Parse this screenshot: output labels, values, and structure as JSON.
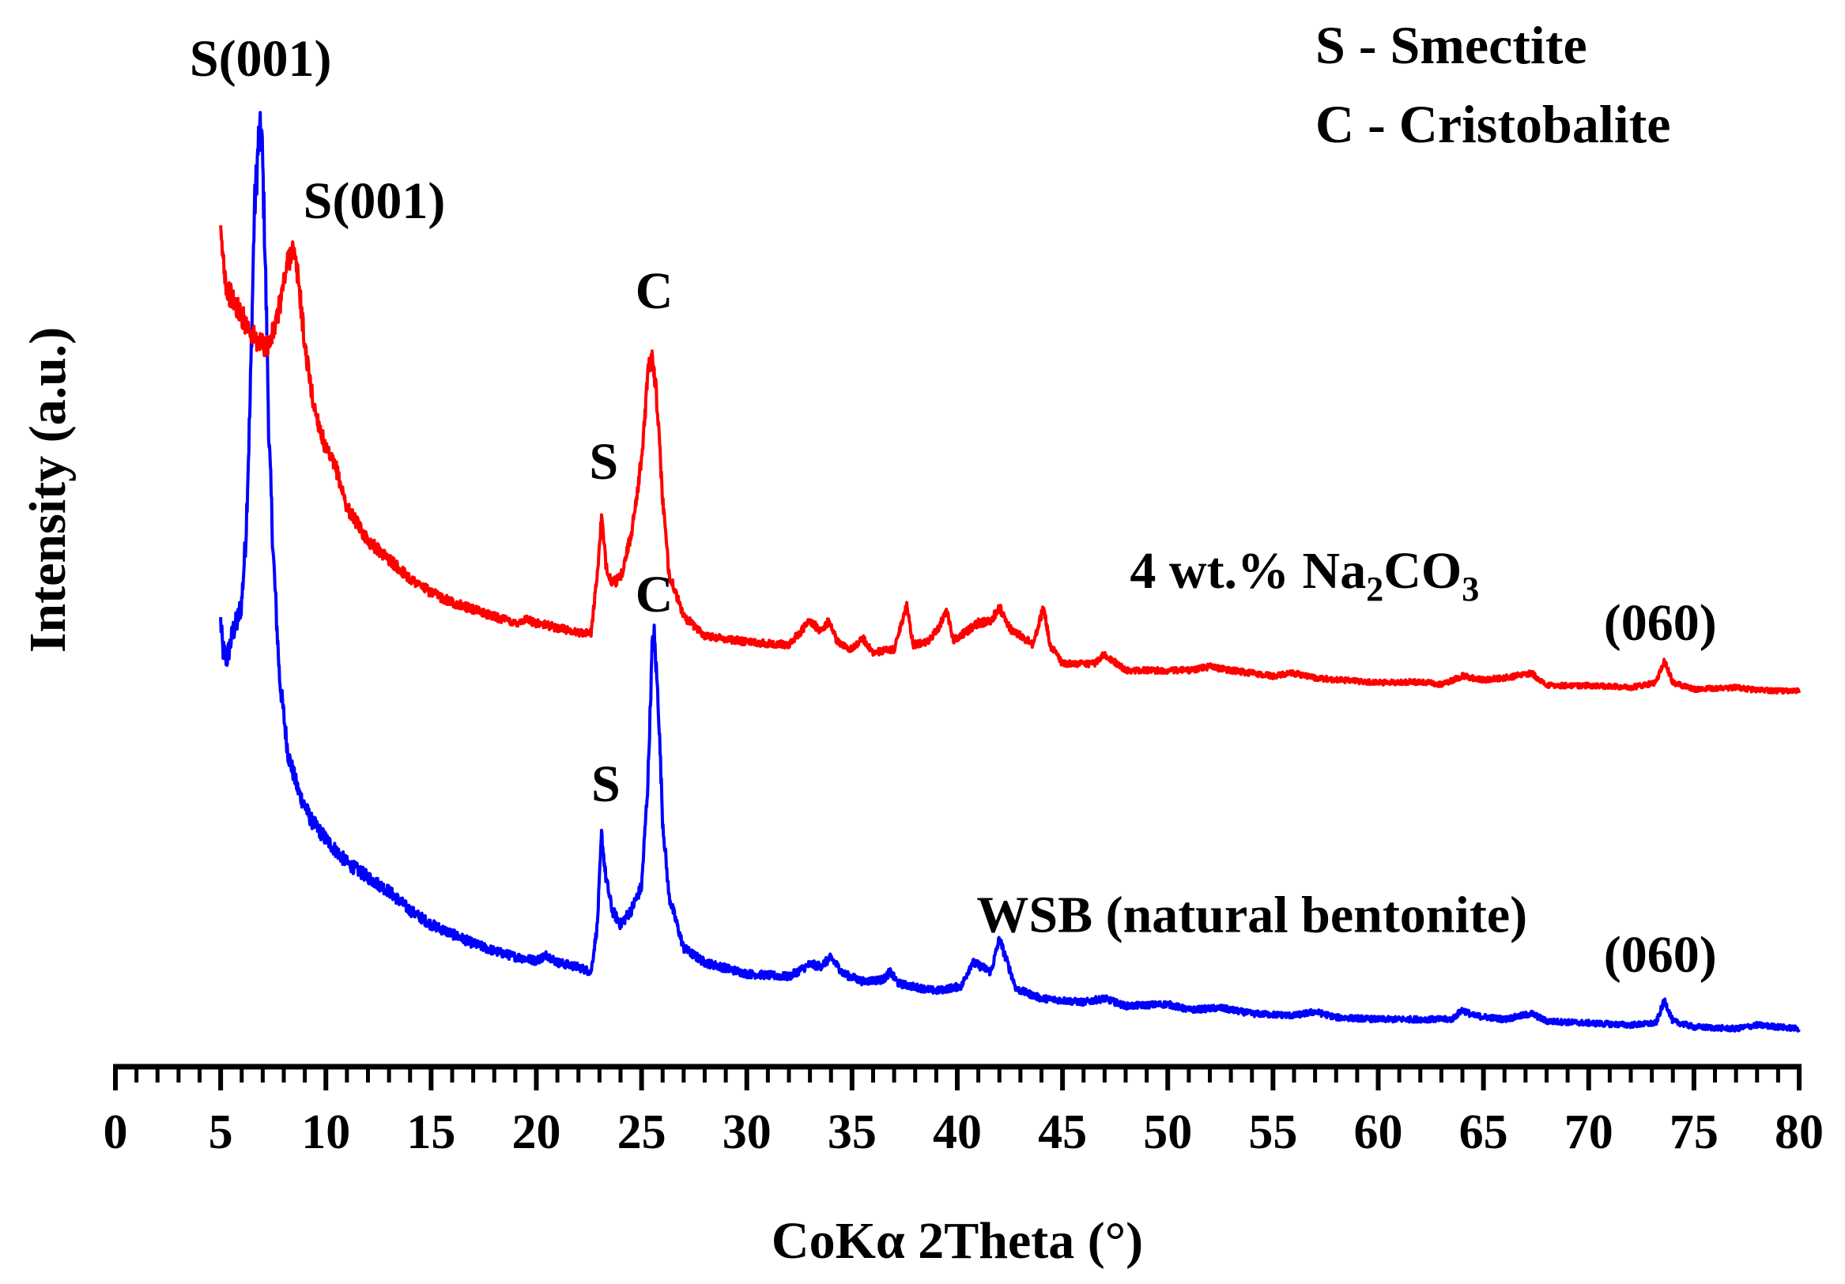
{
  "chart_data": {
    "type": "line",
    "xlabel": "CoKα 2Theta (°)",
    "ylabel": "Intensity (a.u.)",
    "xlim": [
      0,
      80
    ],
    "ylim": [
      0,
      1000
    ],
    "x_ticks": [
      0,
      5,
      10,
      15,
      20,
      25,
      30,
      35,
      40,
      45,
      50,
      55,
      60,
      65,
      70,
      75,
      80
    ],
    "x_tick_labels": [
      "0",
      "5",
      "10",
      "15",
      "20",
      "25",
      "30",
      "35",
      "40",
      "45",
      "50",
      "55",
      "60",
      "65",
      "70",
      "75",
      "80"
    ],
    "minor_tick_step": 1,
    "legend": {
      "placement": "top-right",
      "lines": [
        "S - Smectite",
        "C - Cristobalite"
      ]
    },
    "series": [
      {
        "name": "WSB (natural bentonite)",
        "color": "#0000ff",
        "baseline": 30,
        "points": [
          [
            5.0,
            470
          ],
          [
            5.1,
            440
          ],
          [
            5.3,
            430
          ],
          [
            5.6,
            460
          ],
          [
            5.8,
            470
          ],
          [
            6.0,
            490
          ],
          [
            6.2,
            560
          ],
          [
            6.4,
            700
          ],
          [
            6.6,
            900
          ],
          [
            6.8,
            975
          ],
          [
            6.95,
            985
          ],
          [
            7.1,
            870
          ],
          [
            7.3,
            660
          ],
          [
            7.5,
            540
          ],
          [
            7.8,
            410
          ],
          [
            8.2,
            330
          ],
          [
            8.7,
            290
          ],
          [
            9.3,
            260
          ],
          [
            10,
            240
          ],
          [
            11,
            215
          ],
          [
            12,
            200
          ],
          [
            13,
            185
          ],
          [
            14,
            165
          ],
          [
            15,
            150
          ],
          [
            16,
            140
          ],
          [
            17,
            130
          ],
          [
            18,
            122
          ],
          [
            19,
            116
          ],
          [
            20,
            112
          ],
          [
            20.5,
            118
          ],
          [
            21,
            110
          ],
          [
            22,
            105
          ],
          [
            22.6,
            100
          ],
          [
            22.9,
            150
          ],
          [
            23.1,
            245
          ],
          [
            23.3,
            200
          ],
          [
            23.6,
            165
          ],
          [
            24,
            150
          ],
          [
            24.5,
            165
          ],
          [
            25.0,
            190
          ],
          [
            25.3,
            300
          ],
          [
            25.5,
            440
          ],
          [
            25.6,
            455
          ],
          [
            25.8,
            380
          ],
          [
            26.0,
            260
          ],
          [
            26.3,
            180
          ],
          [
            27,
            125
          ],
          [
            28,
            110
          ],
          [
            30,
            98
          ],
          [
            32,
            95
          ],
          [
            33,
            108
          ],
          [
            33.5,
            106
          ],
          [
            34,
            115
          ],
          [
            34.6,
            98
          ],
          [
            35.5,
            90
          ],
          [
            36.5,
            92
          ],
          [
            36.8,
            100
          ],
          [
            37.2,
            88
          ],
          [
            38,
            84
          ],
          [
            39,
            80
          ],
          [
            40.2,
            85
          ],
          [
            40.7,
            110
          ],
          [
            41.2,
            105
          ],
          [
            41.6,
            100
          ],
          [
            42,
            135
          ],
          [
            42.3,
            115
          ],
          [
            42.8,
            82
          ],
          [
            44,
            72
          ],
          [
            46,
            68
          ],
          [
            47,
            72
          ],
          [
            48,
            64
          ],
          [
            50,
            66
          ],
          [
            51,
            60
          ],
          [
            52.5,
            62
          ],
          [
            54,
            56
          ],
          [
            56,
            54
          ],
          [
            57,
            58
          ],
          [
            58,
            52
          ],
          [
            60,
            50
          ],
          [
            62,
            50
          ],
          [
            63.5,
            50
          ],
          [
            64,
            60
          ],
          [
            64.5,
            54
          ],
          [
            66,
            50
          ],
          [
            67.3,
            56
          ],
          [
            68,
            48
          ],
          [
            70,
            46
          ],
          [
            72,
            44
          ],
          [
            73.2,
            46
          ],
          [
            73.6,
            70
          ],
          [
            74,
            48
          ],
          [
            75,
            42
          ],
          [
            77,
            40
          ],
          [
            78,
            44
          ],
          [
            80,
            40
          ]
        ]
      },
      {
        "name": "4 wt.% Na2CO3",
        "color": "#ff0000",
        "baseline": 395,
        "points": [
          [
            5.0,
            875
          ],
          [
            5.3,
            820
          ],
          [
            5.8,
            800
          ],
          [
            6.3,
            780
          ],
          [
            6.8,
            762
          ],
          [
            7.3,
            760
          ],
          [
            7.7,
            790
          ],
          [
            8.1,
            840
          ],
          [
            8.4,
            865
          ],
          [
            8.7,
            830
          ],
          [
            9.0,
            760
          ],
          [
            9.4,
            700
          ],
          [
            10,
            650
          ],
          [
            10.5,
            630
          ],
          [
            11,
            590
          ],
          [
            12,
            555
          ],
          [
            13,
            535
          ],
          [
            14,
            515
          ],
          [
            15,
            500
          ],
          [
            16,
            490
          ],
          [
            17,
            482
          ],
          [
            18,
            475
          ],
          [
            19,
            468
          ],
          [
            19.5,
            472
          ],
          [
            20,
            468
          ],
          [
            21,
            463
          ],
          [
            22,
            458
          ],
          [
            22.6,
            458
          ],
          [
            22.9,
            520
          ],
          [
            23.1,
            580
          ],
          [
            23.3,
            530
          ],
          [
            23.6,
            510
          ],
          [
            24,
            515
          ],
          [
            24.5,
            560
          ],
          [
            25.0,
            640
          ],
          [
            25.3,
            730
          ],
          [
            25.5,
            755
          ],
          [
            25.7,
            710
          ],
          [
            26.0,
            600
          ],
          [
            26.3,
            520
          ],
          [
            27,
            475
          ],
          [
            28,
            455
          ],
          [
            30,
            448
          ],
          [
            32,
            445
          ],
          [
            33,
            470
          ],
          [
            33.5,
            460
          ],
          [
            33.9,
            470
          ],
          [
            34.3,
            448
          ],
          [
            35,
            440
          ],
          [
            35.5,
            452
          ],
          [
            36,
            437
          ],
          [
            37,
            440
          ],
          [
            37.6,
            488
          ],
          [
            37.9,
            445
          ],
          [
            38.6,
            448
          ],
          [
            39.1,
            462
          ],
          [
            39.5,
            482
          ],
          [
            39.8,
            450
          ],
          [
            40.5,
            460
          ],
          [
            41,
            468
          ],
          [
            41.6,
            470
          ],
          [
            42,
            485
          ],
          [
            42.5,
            462
          ],
          [
            43,
            455
          ],
          [
            43.6,
            445
          ],
          [
            44.1,
            485
          ],
          [
            44.4,
            445
          ],
          [
            45,
            425
          ],
          [
            46.5,
            425
          ],
          [
            47,
            435
          ],
          [
            48,
            418
          ],
          [
            50,
            418
          ],
          [
            51,
            418
          ],
          [
            52,
            422
          ],
          [
            53,
            418
          ],
          [
            55,
            412
          ],
          [
            56,
            415
          ],
          [
            57,
            410
          ],
          [
            60,
            405
          ],
          [
            62,
            406
          ],
          [
            63,
            403
          ],
          [
            64,
            412
          ],
          [
            65,
            408
          ],
          [
            66,
            410
          ],
          [
            67.3,
            415
          ],
          [
            68,
            402
          ],
          [
            70,
            402
          ],
          [
            72,
            400
          ],
          [
            73.2,
            405
          ],
          [
            73.6,
            428
          ],
          [
            74,
            405
          ],
          [
            75,
            398
          ],
          [
            77,
            400
          ],
          [
            78,
            397
          ],
          [
            80,
            396
          ]
        ]
      }
    ],
    "annotations": [
      {
        "text": "S(001)",
        "x": 6.9,
        "y": 1045
      },
      {
        "text": "S(001)",
        "x": 12.3,
        "y": 895
      },
      {
        "text": "C",
        "x": 25.6,
        "y": 800
      },
      {
        "text": "S",
        "x": 23.2,
        "y": 620
      },
      {
        "text": "C",
        "x": 25.6,
        "y": 480
      },
      {
        "text": "S",
        "x": 23.3,
        "y": 280
      },
      {
        "text": "(060)",
        "x": 73.4,
        "y": 450
      },
      {
        "text": "(060)",
        "x": 73.4,
        "y": 100
      },
      {
        "text": "WSB (natural bentonite)",
        "x": 54,
        "y": 142
      }
    ],
    "na_label": {
      "prefix": "4 wt.% Na",
      "sub1": "2",
      "mid": "CO",
      "sub2": "3",
      "x": 56.5,
      "y": 505
    }
  }
}
